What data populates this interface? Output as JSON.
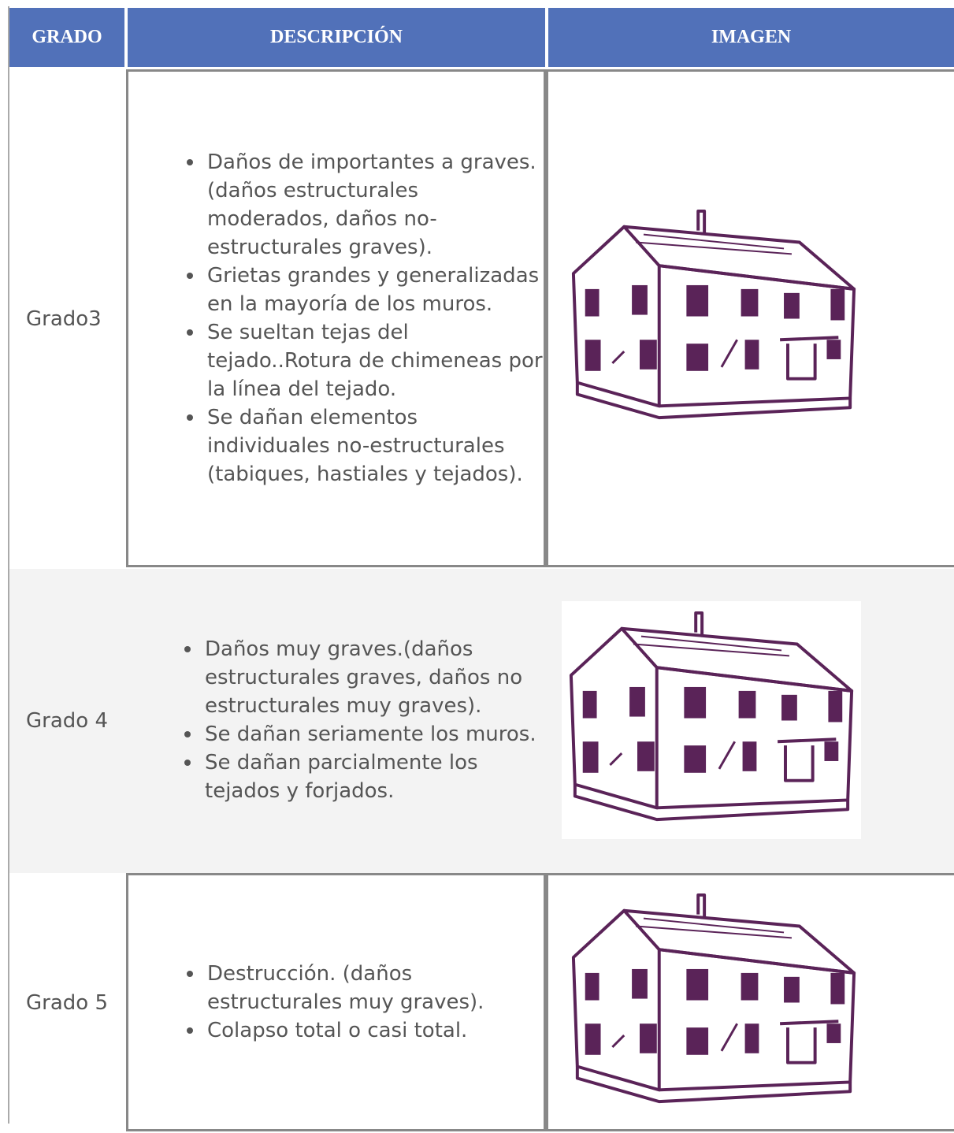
{
  "header": {
    "grado": "GRADO",
    "descripcion": "DESCRIPCIÓN",
    "imagen": "IMAGEN"
  },
  "rows": [
    {
      "grado": "Grado3",
      "items": [
        "Daños de importantes a graves.(daños estructurales moderados, daños no-estructurales graves).",
        "Grietas grandes y generalizadas en la mayoría de los muros.",
        "Se sueltan tejas del tejado..Rotura de chimeneas por la línea del tejado.",
        "Se dañan elementos individuales no-estructurales (tabiques, hastiales y tejados)."
      ]
    },
    {
      "grado": "Grado 4",
      "items": [
        "Daños muy graves.(daños estructurales graves, daños no estructurales muy graves).",
        "Se dañan seriamente los muros.",
        "Se dañan parcialmente los tejados y forjados."
      ]
    },
    {
      "grado": "Grado 5",
      "items": [
        "Destrucción. (daños estructurales muy graves).",
        "Colapso total o casi total."
      ]
    }
  ]
}
